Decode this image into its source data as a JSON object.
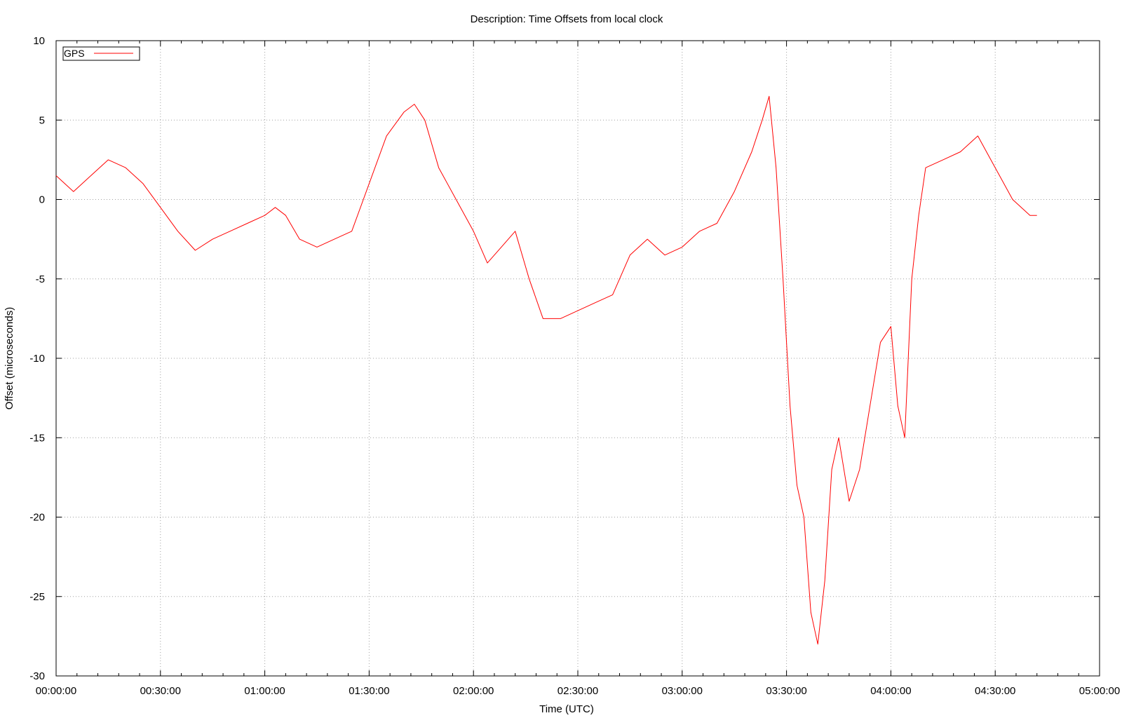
{
  "chart_data": {
    "type": "line",
    "title": "Description: Time Offsets from local clock",
    "xlabel": "Time (UTC)",
    "ylabel": "Offset (microseconds)",
    "xlim": [
      "00:00:00",
      "05:00:00"
    ],
    "ylim": [
      -30,
      10
    ],
    "x_ticks": [
      "00:00:00",
      "00:30:00",
      "01:00:00",
      "01:30:00",
      "02:00:00",
      "02:30:00",
      "03:00:00",
      "03:30:00",
      "04:00:00",
      "04:30:00",
      "05:00:00"
    ],
    "y_ticks": [
      10,
      5,
      0,
      -5,
      -10,
      -15,
      -20,
      -25,
      -30
    ],
    "grid": true,
    "legend_position": "top-left",
    "series": [
      {
        "name": "GPS",
        "color": "#ff0000",
        "x": [
          "00:00:00",
          "00:05:00",
          "00:10:00",
          "00:15:00",
          "00:20:00",
          "00:25:00",
          "00:30:00",
          "00:35:00",
          "00:40:00",
          "00:45:00",
          "00:50:00",
          "00:55:00",
          "01:00:00",
          "01:03:00",
          "01:06:00",
          "01:10:00",
          "01:15:00",
          "01:20:00",
          "01:25:00",
          "01:30:00",
          "01:35:00",
          "01:40:00",
          "01:43:00",
          "01:46:00",
          "01:50:00",
          "01:55:00",
          "02:00:00",
          "02:04:00",
          "02:08:00",
          "02:12:00",
          "02:16:00",
          "02:20:00",
          "02:25:00",
          "02:30:00",
          "02:35:00",
          "02:40:00",
          "02:45:00",
          "02:50:00",
          "02:55:00",
          "03:00:00",
          "03:05:00",
          "03:10:00",
          "03:15:00",
          "03:20:00",
          "03:23:00",
          "03:25:00",
          "03:27:00",
          "03:29:00",
          "03:31:00",
          "03:33:00",
          "03:35:00",
          "03:37:00",
          "03:39:00",
          "03:41:00",
          "03:43:00",
          "03:45:00",
          "03:48:00",
          "03:51:00",
          "03:54:00",
          "03:57:00",
          "04:00:00",
          "04:02:00",
          "04:04:00",
          "04:06:00",
          "04:08:00",
          "04:10:00",
          "04:15:00",
          "04:20:00",
          "04:25:00",
          "04:30:00",
          "04:35:00",
          "04:40:00",
          "04:42:00"
        ],
        "values": [
          1.5,
          0.5,
          1.5,
          2.5,
          2,
          1,
          -0.5,
          -2,
          -3.2,
          -2.5,
          -2,
          -1.5,
          -1,
          -0.5,
          -1,
          -2.5,
          -3,
          -2.5,
          -2,
          1,
          4,
          5.5,
          6,
          5,
          2,
          0,
          -2,
          -4,
          -3,
          -2,
          -5,
          -7.5,
          -7.5,
          -7,
          -6.5,
          -6,
          -3.5,
          -2.5,
          -3.5,
          -3,
          -2,
          -1.5,
          0.5,
          3,
          5,
          6.5,
          2,
          -5,
          -13,
          -18,
          -20,
          -26,
          -28,
          -24,
          -17,
          -15,
          -19,
          -17,
          -13,
          -9,
          -8,
          -13,
          -15,
          -5,
          -1,
          2,
          2.5,
          3,
          4,
          2,
          0,
          -1,
          -1
        ]
      }
    ]
  }
}
